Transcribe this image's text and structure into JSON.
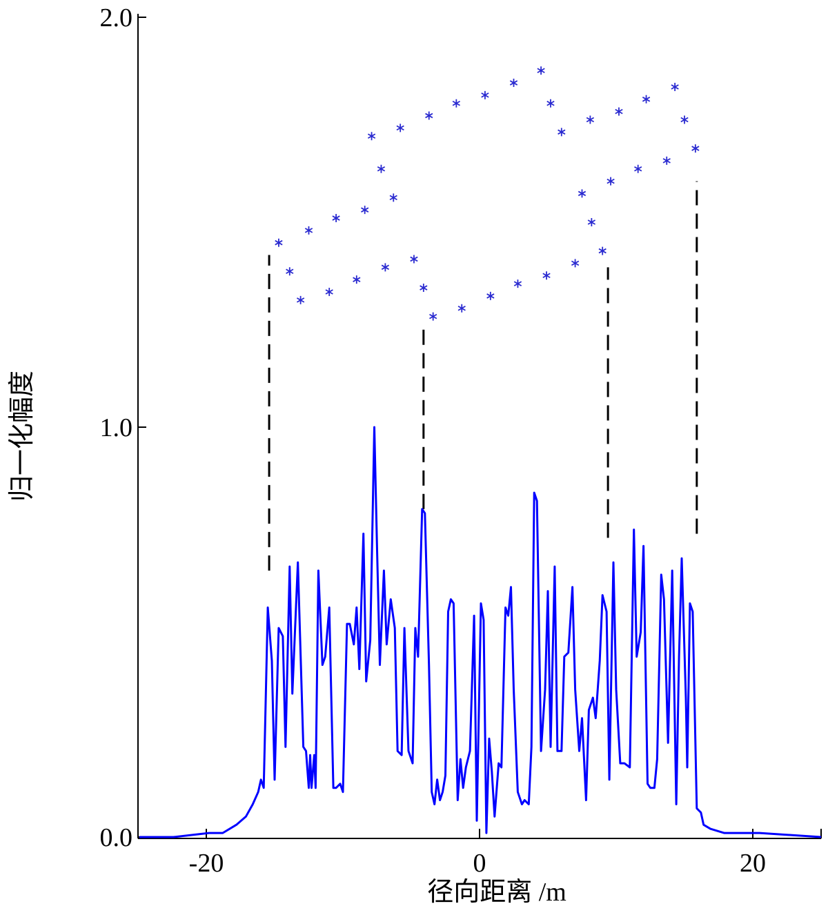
{
  "chart_data": {
    "type": "line",
    "xlabel": "径向距离 /m",
    "ylabel": "归一化幅度",
    "xlim": [
      -25,
      25
    ],
    "ylim": [
      0,
      2
    ],
    "xticks": [
      -20,
      0,
      20
    ],
    "yticks": [
      {
        "value": 0,
        "label": "0.0"
      },
      {
        "value": 1,
        "label": "1.0"
      },
      {
        "value": 2,
        "label": "2.0"
      }
    ],
    "series": [
      {
        "type": "line",
        "color": "#0000ff",
        "x": [
          -24.9,
          -22.4,
          -19.8,
          -18.8,
          -17.8,
          -17.1,
          -16.6,
          -16.2,
          -16.0,
          -15.8,
          -15.7,
          -15.5,
          -15.2,
          -15.0,
          -14.7,
          -14.4,
          -14.2,
          -13.9,
          -13.7,
          -13.3,
          -12.9,
          -12.7,
          -12.5,
          -12.4,
          -12.3,
          -12.1,
          -12.0,
          -11.8,
          -11.5,
          -11.3,
          -11.0,
          -10.7,
          -10.5,
          -10.2,
          -10.0,
          -9.7,
          -9.5,
          -9.2,
          -9.0,
          -8.8,
          -8.5,
          -8.3,
          -8.0,
          -7.7,
          -7.5,
          -7.3,
          -7.0,
          -6.8,
          -6.5,
          -6.2,
          -6.0,
          -5.7,
          -5.5,
          -5.2,
          -4.9,
          -4.7,
          -4.5,
          -4.2,
          -4.0,
          -3.7,
          -3.5,
          -3.3,
          -3.1,
          -2.9,
          -2.7,
          -2.5,
          -2.3,
          -2.1,
          -1.9,
          -1.6,
          -1.4,
          -1.2,
          -1.0,
          -0.7,
          -0.4,
          -0.2,
          0.1,
          0.3,
          0.5,
          0.7,
          0.9,
          1.1,
          1.4,
          1.6,
          1.9,
          2.1,
          2.3,
          2.5,
          2.8,
          3.1,
          3.3,
          3.6,
          3.8,
          4.0,
          4.2,
          4.5,
          4.8,
          5.0,
          5.2,
          5.5,
          5.7,
          6.0,
          6.2,
          6.5,
          6.8,
          7.0,
          7.3,
          7.5,
          7.8,
          8.0,
          8.3,
          8.5,
          8.8,
          9.0,
          9.3,
          9.5,
          9.8,
          10.0,
          10.3,
          10.6,
          11.0,
          11.3,
          11.5,
          11.8,
          12.0,
          12.3,
          12.5,
          12.8,
          13.0,
          13.3,
          13.5,
          13.8,
          14.1,
          14.4,
          14.6,
          14.8,
          15.1,
          15.2,
          15.4,
          15.6,
          15.9,
          16.2,
          16.4,
          16.9,
          17.9,
          20.5,
          25.0
        ],
        "values": [
          0.0,
          0.0,
          0.01,
          0.01,
          0.03,
          0.05,
          0.08,
          0.11,
          0.14,
          0.12,
          0.26,
          0.56,
          0.43,
          0.14,
          0.51,
          0.49,
          0.22,
          0.66,
          0.35,
          0.67,
          0.22,
          0.21,
          0.12,
          0.2,
          0.12,
          0.2,
          0.12,
          0.65,
          0.42,
          0.44,
          0.56,
          0.12,
          0.12,
          0.13,
          0.11,
          0.52,
          0.52,
          0.47,
          0.56,
          0.41,
          0.74,
          0.38,
          0.48,
          1.0,
          0.7,
          0.42,
          0.65,
          0.47,
          0.58,
          0.51,
          0.21,
          0.2,
          0.51,
          0.21,
          0.18,
          0.51,
          0.44,
          0.8,
          0.79,
          0.42,
          0.11,
          0.08,
          0.14,
          0.09,
          0.11,
          0.15,
          0.55,
          0.58,
          0.57,
          0.09,
          0.19,
          0.12,
          0.17,
          0.21,
          0.54,
          0.04,
          0.57,
          0.53,
          0.01,
          0.24,
          0.16,
          0.05,
          0.18,
          0.17,
          0.56,
          0.54,
          0.61,
          0.36,
          0.11,
          0.08,
          0.09,
          0.08,
          0.22,
          0.84,
          0.82,
          0.21,
          0.36,
          0.6,
          0.22,
          0.66,
          0.21,
          0.21,
          0.44,
          0.45,
          0.61,
          0.36,
          0.21,
          0.29,
          0.09,
          0.31,
          0.34,
          0.29,
          0.43,
          0.59,
          0.55,
          0.14,
          0.67,
          0.36,
          0.18,
          0.18,
          0.17,
          0.75,
          0.44,
          0.5,
          0.71,
          0.13,
          0.12,
          0.12,
          0.19,
          0.64,
          0.58,
          0.23,
          0.65,
          0.08,
          0.44,
          0.68,
          0.34,
          0.17,
          0.57,
          0.55,
          0.07,
          0.06,
          0.03,
          0.02,
          0.01,
          0.01,
          0.0
        ]
      },
      {
        "type": "scatter",
        "color": "#2a2ad0",
        "x": [
          -14.7,
          -12.5,
          -10.5,
          -8.4,
          -6.3,
          -7.2,
          -7.9,
          -5.8,
          -3.7,
          -1.7,
          0.4,
          2.5,
          4.5,
          5.2,
          6.0,
          8.1,
          10.2,
          12.2,
          14.3,
          15.0,
          15.8,
          13.7,
          11.6,
          9.6,
          7.5,
          8.2,
          9.0,
          7.0,
          4.9,
          2.8,
          0.8,
          -1.3,
          -3.4,
          -4.1,
          -4.8,
          -6.9,
          -9.0,
          -11.0,
          -13.1,
          -13.9
        ],
        "values": [
          1.45,
          1.48,
          1.51,
          1.53,
          1.56,
          1.63,
          1.71,
          1.73,
          1.76,
          1.79,
          1.81,
          1.84,
          1.87,
          1.79,
          1.72,
          1.75,
          1.77,
          1.8,
          1.83,
          1.75,
          1.68,
          1.65,
          1.63,
          1.6,
          1.57,
          1.5,
          1.43,
          1.4,
          1.37,
          1.35,
          1.32,
          1.29,
          1.27,
          1.34,
          1.41,
          1.39,
          1.36,
          1.33,
          1.31,
          1.38
        ]
      }
    ],
    "dashed_lines": [
      {
        "x": -15.4,
        "y": [
          0.65,
          1.42
        ]
      },
      {
        "x": -4.1,
        "y": [
          0.8,
          1.24
        ]
      },
      {
        "x": 9.4,
        "y": [
          0.73,
          1.39
        ]
      },
      {
        "x": 15.9,
        "y": [
          0.74,
          1.6
        ]
      }
    ]
  }
}
